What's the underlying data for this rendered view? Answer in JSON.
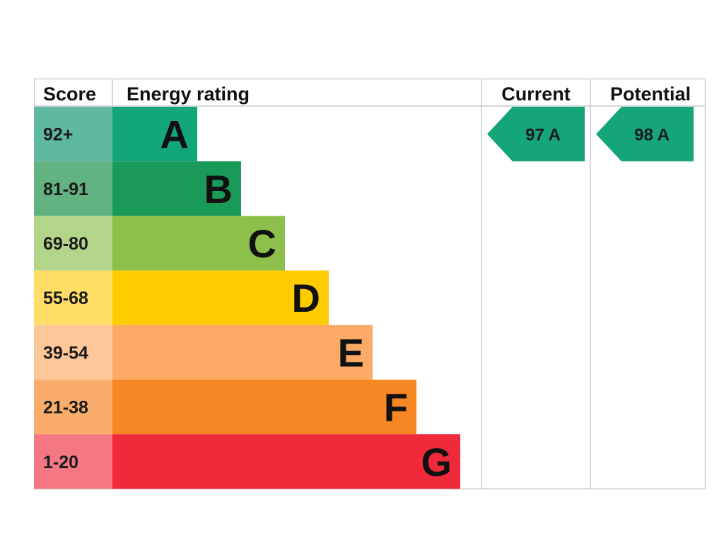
{
  "chart_data": {
    "type": "table",
    "headers": {
      "score": "Score",
      "rating": "Energy rating",
      "current": "Current",
      "potential": "Potential"
    },
    "bands": [
      {
        "letter": "A",
        "score": "92+",
        "color": "#13a67a",
        "score_bg": "#5fb8a0"
      },
      {
        "letter": "B",
        "score": "81-91",
        "color": "#1a9a58",
        "score_bg": "#62b382"
      },
      {
        "letter": "C",
        "score": "69-80",
        "color": "#8dc04a",
        "score_bg": "#b3d58a"
      },
      {
        "letter": "D",
        "score": "55-68",
        "color": "#ffcc00",
        "score_bg": "#ffdd66"
      },
      {
        "letter": "E",
        "score": "39-54",
        "color": "#fcaa65",
        "score_bg": "#fdc799"
      },
      {
        "letter": "F",
        "score": "21-38",
        "color": "#f78722",
        "score_bg": "#f9ac6b"
      },
      {
        "letter": "G",
        "score": "1-20",
        "color": "#ef2a3b",
        "score_bg": "#f47783"
      }
    ],
    "current": {
      "value": 97,
      "band": "A",
      "color": "#14a67a"
    },
    "potential": {
      "value": 98,
      "band": "A",
      "color": "#14a67a"
    }
  }
}
